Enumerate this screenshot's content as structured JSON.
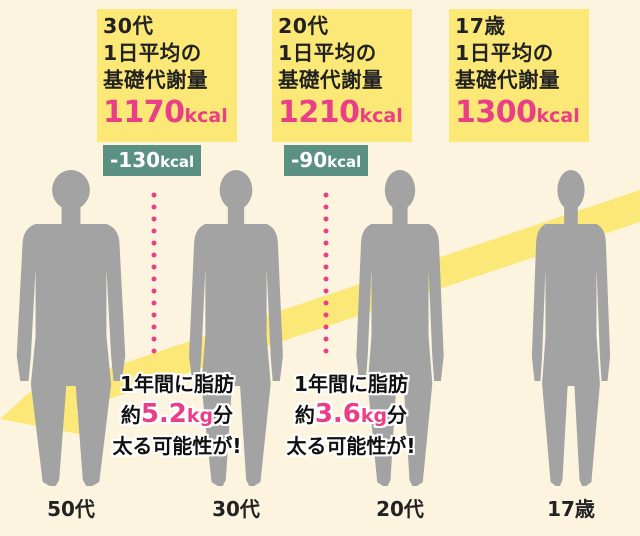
{
  "stages": [
    {
      "age": "50代"
    },
    {
      "age": "30代",
      "title": "30代\n1日平均の\n基礎代謝量",
      "bmr_value": "1170",
      "bmr_unit": "kcal",
      "diff_value": "-130",
      "diff_unit": "kcal",
      "gain_prefix": "1年間に脂肪",
      "gain_pre": "約",
      "gain_value": "5.2",
      "gain_unit": "kg",
      "gain_post": "分",
      "gain_suffix": "太る可能性が!"
    },
    {
      "age": "20代",
      "title": "20代\n1日平均の\n基礎代謝量",
      "bmr_value": "1210",
      "bmr_unit": "kcal",
      "diff_value": "-90",
      "diff_unit": "kcal",
      "gain_prefix": "1年間に脂肪",
      "gain_pre": "約",
      "gain_value": "3.6",
      "gain_unit": "kg",
      "gain_post": "分",
      "gain_suffix": "太る可能性が!"
    },
    {
      "age": "17歳",
      "title": "17歳\n1日平均の\n基礎代謝量",
      "bmr_value": "1300",
      "bmr_unit": "kcal"
    }
  ],
  "colors": {
    "background": "#fdf4e0",
    "box": "#fbe876",
    "accent_pink": "#ea3f86",
    "diff_badge": "#5a9183",
    "silhouette": "#a3a3a3",
    "arrow": "#fbe876"
  }
}
